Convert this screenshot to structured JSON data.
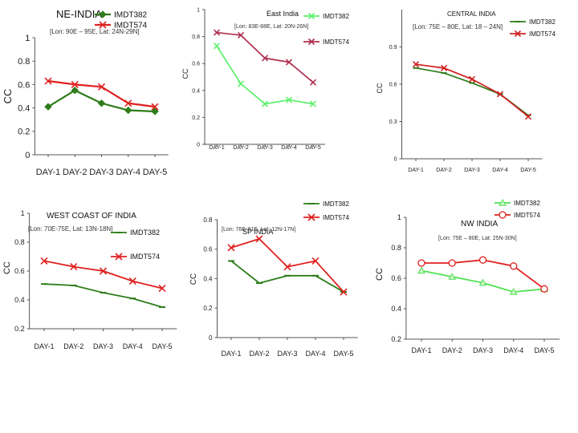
{
  "chart_data": [
    {
      "type": "line",
      "title": "NE-INDIA",
      "annotation": "[Lon: 90E – 95E, Lat: 24N-29N]",
      "ylabel": "CC",
      "categories": [
        "DAY-1",
        "DAY-2",
        "DAY-3",
        "DAY-4",
        "DAY-5"
      ],
      "ylim": [
        0,
        1
      ],
      "yticks": [
        "0",
        "0.2",
        "0.4",
        "0.6",
        "0.8",
        "1"
      ],
      "legend": "top-right",
      "series": [
        {
          "name": "IMDT382",
          "color": "#2e7d1a",
          "marker": "diamond",
          "values": [
            0.41,
            0.55,
            0.44,
            0.38,
            0.37
          ]
        },
        {
          "name": "IMDT574",
          "color": "#e02020",
          "marker": "x",
          "values": [
            0.63,
            0.6,
            0.58,
            0.44,
            0.41
          ]
        }
      ]
    },
    {
      "type": "line",
      "title": "East India",
      "annotation": "[Lon: 83E-88E, Lat: 20N-26N]",
      "ylabel": "CC",
      "categories": [
        "DAY-1",
        "DAY-2",
        "DAY-3",
        "DAY-4",
        "DAY-5"
      ],
      "ylim": [
        0,
        1
      ],
      "yticks": [
        "0",
        "0.2",
        "0.4",
        "0.6",
        "0.8",
        "1"
      ],
      "legend": "top-right",
      "series": [
        {
          "name": "IMDT382",
          "color": "#5cf06c",
          "marker": "x",
          "values": [
            0.73,
            0.45,
            0.3,
            0.33,
            0.3
          ]
        },
        {
          "name": "IMDT574",
          "color": "#b03050",
          "marker": "x",
          "values": [
            0.83,
            0.81,
            0.64,
            0.61,
            0.46
          ]
        }
      ]
    },
    {
      "type": "line",
      "title": "CENTRAL INDIA",
      "annotation": "[Lon: 75E – 80E, Lat: 18 – 24N]",
      "ylabel": "CC",
      "categories": [
        "DAY-1",
        "DAY-2",
        "DAY-3",
        "DAY-4",
        "DAY-5"
      ],
      "ylim": [
        0,
        1.2
      ],
      "yticks": [
        "0",
        "0.3",
        "0.6",
        "0.9"
      ],
      "legend": "top-right",
      "series": [
        {
          "name": "IMDT382",
          "color": "#2e7d1a",
          "marker": "dash",
          "values": [
            0.73,
            0.69,
            0.61,
            0.52,
            0.35
          ]
        },
        {
          "name": "IMDT574",
          "color": "#d02020",
          "marker": "x",
          "values": [
            0.76,
            0.73,
            0.64,
            0.52,
            0.34
          ]
        }
      ]
    },
    {
      "type": "line",
      "title": "WEST COAST OF INDIA",
      "annotation": "[Lon: 70E-75E, Lat: 13N-18N]",
      "ylabel": "CC",
      "categories": [
        "DAY-1",
        "DAY-2",
        "DAY-3",
        "DAY-4",
        "DAY-5"
      ],
      "ylim": [
        0.2,
        1
      ],
      "yticks": [
        "0.2",
        "0.4",
        "0.6",
        "0.8",
        "1"
      ],
      "legend": "top-right",
      "series": [
        {
          "name": "IMDT382",
          "color": "#2e7d1a",
          "marker": "dash",
          "values": [
            0.51,
            0.5,
            0.45,
            0.41,
            0.35
          ]
        },
        {
          "name": "IMDT574",
          "color": "#e02020",
          "marker": "x",
          "values": [
            0.67,
            0.63,
            0.6,
            0.53,
            0.48
          ]
        }
      ]
    },
    {
      "type": "line",
      "title": "SP INDIA",
      "annotation": "[Lon: 76E-81E, Lat: 12N-17N]",
      "ylabel": "CC",
      "categories": [
        "DAY-1",
        "DAY-2",
        "DAY-3",
        "DAY-4",
        "DAY-5"
      ],
      "ylim": [
        0,
        0.8
      ],
      "yticks": [
        "0",
        "0.2",
        "0.4",
        "0.6",
        "0.8"
      ],
      "legend": "top-right",
      "series": [
        {
          "name": "IMDT382",
          "color": "#2e7d1a",
          "marker": "dash",
          "values": [
            0.52,
            0.37,
            0.42,
            0.42,
            0.31
          ]
        },
        {
          "name": "IMDT574",
          "color": "#e02020",
          "marker": "x",
          "values": [
            0.61,
            0.67,
            0.48,
            0.52,
            0.31
          ]
        }
      ]
    },
    {
      "type": "line",
      "title": "NW INDIA",
      "annotation": "[Lon: 75E – 80E, Lat: 25N-30N]",
      "ylabel": "CC",
      "categories": [
        "DAY-1",
        "DAY-2",
        "DAY-3",
        "DAY-4",
        "DAY-5"
      ],
      "ylim": [
        0.2,
        1
      ],
      "yticks": [
        "0.2",
        "0.4",
        "0.6",
        "0.8",
        "1"
      ],
      "legend": "top-right",
      "series": [
        {
          "name": "IMDT382",
          "color": "#52e052",
          "marker": "triangle",
          "values": [
            0.65,
            0.61,
            0.57,
            0.51,
            0.53
          ]
        },
        {
          "name": "IMDT574",
          "color": "#e02020",
          "marker": "circle",
          "values": [
            0.7,
            0.7,
            0.72,
            0.68,
            0.53
          ]
        }
      ]
    }
  ]
}
